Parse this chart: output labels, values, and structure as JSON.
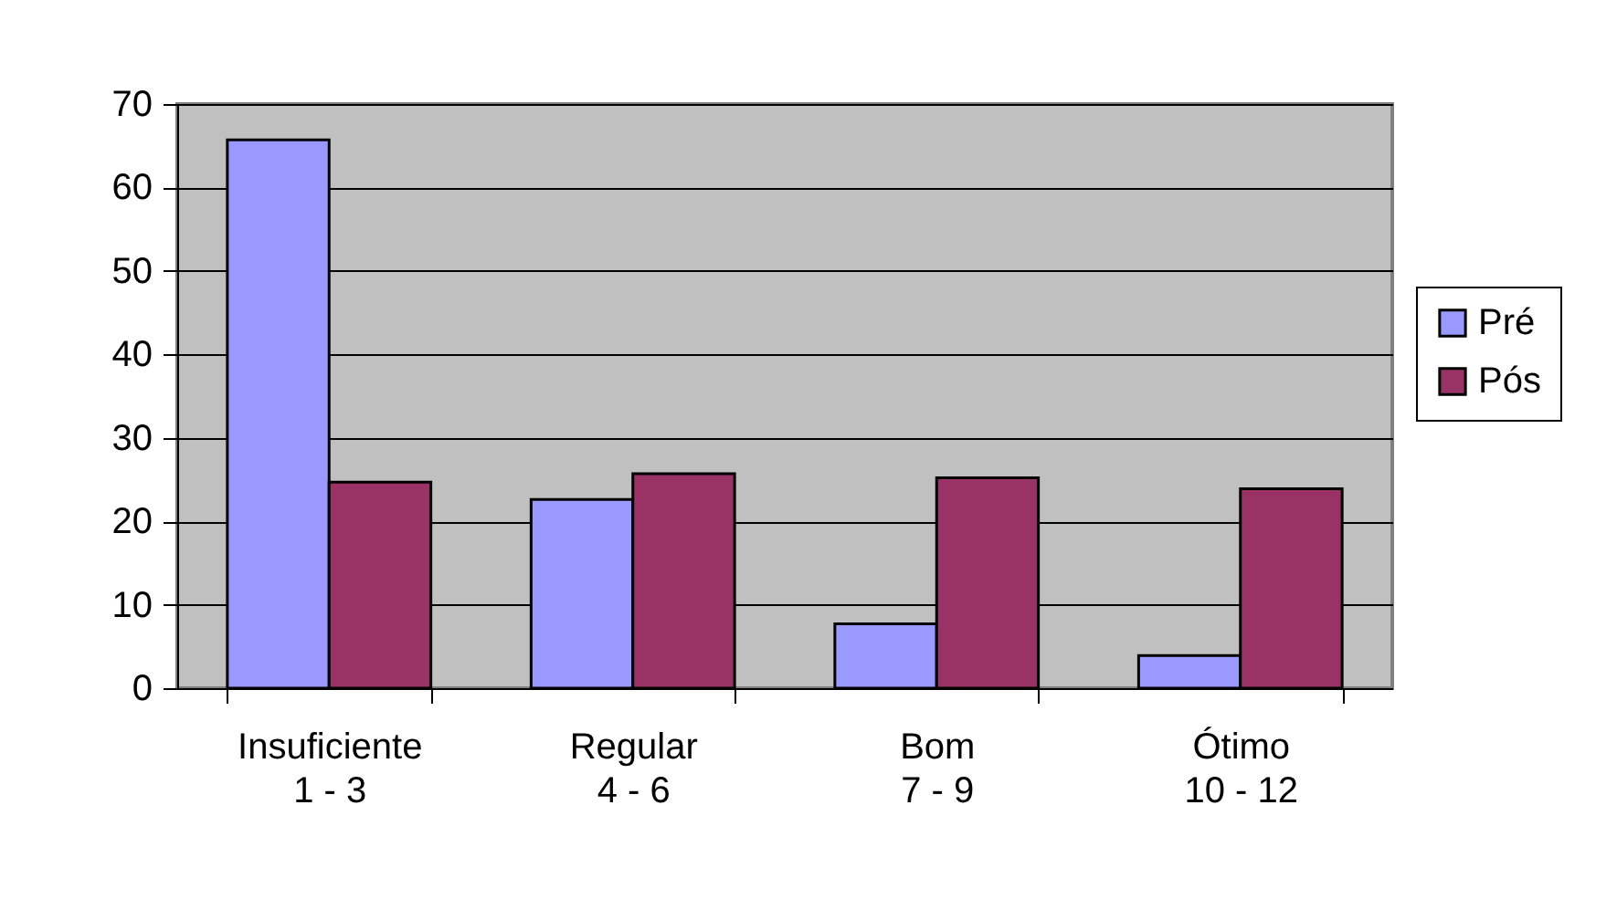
{
  "chart_data": {
    "type": "bar",
    "categories": [
      "Insuficiente\n1 - 3",
      "Regular\n4 - 6",
      "Bom\n7 - 9",
      "Ótimo\n10 - 12"
    ],
    "series": [
      {
        "name": "Pré",
        "color": "#9999ff",
        "values": [
          65.7,
          22.6,
          7.7,
          3.9
        ]
      },
      {
        "name": "Pós",
        "color": "#993366",
        "values": [
          24.7,
          25.7,
          25.2,
          23.9
        ]
      }
    ],
    "ylim": [
      0,
      70
    ],
    "yticks": [
      0,
      10,
      20,
      30,
      40,
      50,
      60,
      70
    ],
    "grid": "y",
    "legend": "right"
  }
}
